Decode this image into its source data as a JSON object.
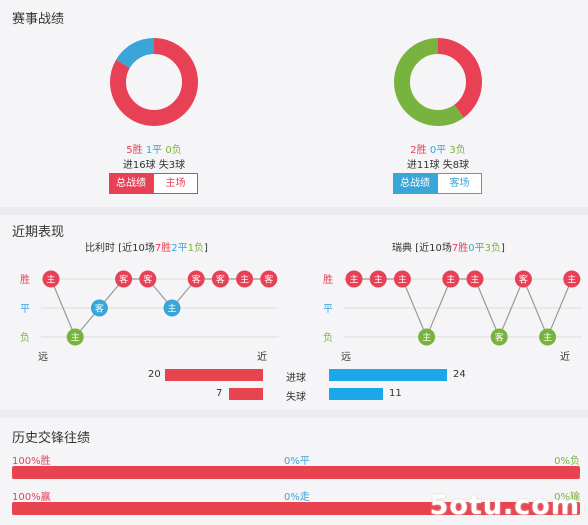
{
  "section1": {
    "title": "赛事战绩",
    "left": {
      "pie": {
        "win": 5,
        "draw": 1,
        "loss": 0
      },
      "win_text": "5胜",
      "draw_text": "1平",
      "loss_text": "0负",
      "goals_text": "进16球  失3球",
      "tab_active": "总战绩",
      "tab_other": "主场"
    },
    "right": {
      "pie": {
        "win": 2,
        "draw": 0,
        "loss": 3
      },
      "win_text": "2胜",
      "draw_text": "0平",
      "loss_text": "3负",
      "goals_text": "进11球  失8球",
      "tab_active": "总战绩",
      "tab_other": "客场"
    }
  },
  "section2": {
    "title": "近期表现",
    "left": {
      "team": "比利时",
      "summary_prefix": "[近10场",
      "wins": "7胜",
      "draws": "2平",
      "losses": "1负",
      "summary_suffix": "]",
      "results": [
        {
          "r": "W",
          "v": "主"
        },
        {
          "r": "L",
          "v": "主"
        },
        {
          "r": "D",
          "v": "客"
        },
        {
          "r": "W",
          "v": "客"
        },
        {
          "r": "W",
          "v": "客"
        },
        {
          "r": "D",
          "v": "主"
        },
        {
          "r": "W",
          "v": "客"
        },
        {
          "r": "W",
          "v": "客"
        },
        {
          "r": "W",
          "v": "主"
        },
        {
          "r": "W",
          "v": "客"
        }
      ],
      "far": "远",
      "near": "近"
    },
    "right": {
      "team": "瑞典",
      "summary_prefix": "[近10场",
      "wins": "7胜",
      "draws": "0平",
      "losses": "3负",
      "summary_suffix": "]",
      "results": [
        {
          "r": "W",
          "v": "主"
        },
        {
          "r": "W",
          "v": "主"
        },
        {
          "r": "W",
          "v": "主"
        },
        {
          "r": "L",
          "v": "主"
        },
        {
          "r": "W",
          "v": "主"
        },
        {
          "r": "W",
          "v": "主"
        },
        {
          "r": "L",
          "v": "客"
        },
        {
          "r": "W",
          "v": "客"
        },
        {
          "r": "L",
          "v": "主"
        },
        {
          "r": "W",
          "v": "主"
        }
      ],
      "far": "远",
      "near": "近"
    },
    "axis": {
      "win": "胜",
      "draw": "平",
      "loss": "负"
    },
    "goals": {
      "scored_label": "进球",
      "conceded_label": "失球",
      "left_scored": 20,
      "left_conceded": 7,
      "right_scored": 24,
      "right_conceded": 11
    }
  },
  "section3": {
    "title": "历史交锋往绩",
    "row1": {
      "left": "100%胜",
      "mid": "0%平",
      "right": "0%负",
      "win_pct": 100
    },
    "row2": {
      "left": "100%赢",
      "mid": "0%走",
      "right": "0%输",
      "win_pct": 100
    }
  },
  "watermark": "5otu.com",
  "colors": {
    "win": "#e84054",
    "draw": "#3aa6d8",
    "loss": "#79b33f",
    "bar_red": "#e8444f",
    "bar_blue": "#1aa8e8"
  }
}
